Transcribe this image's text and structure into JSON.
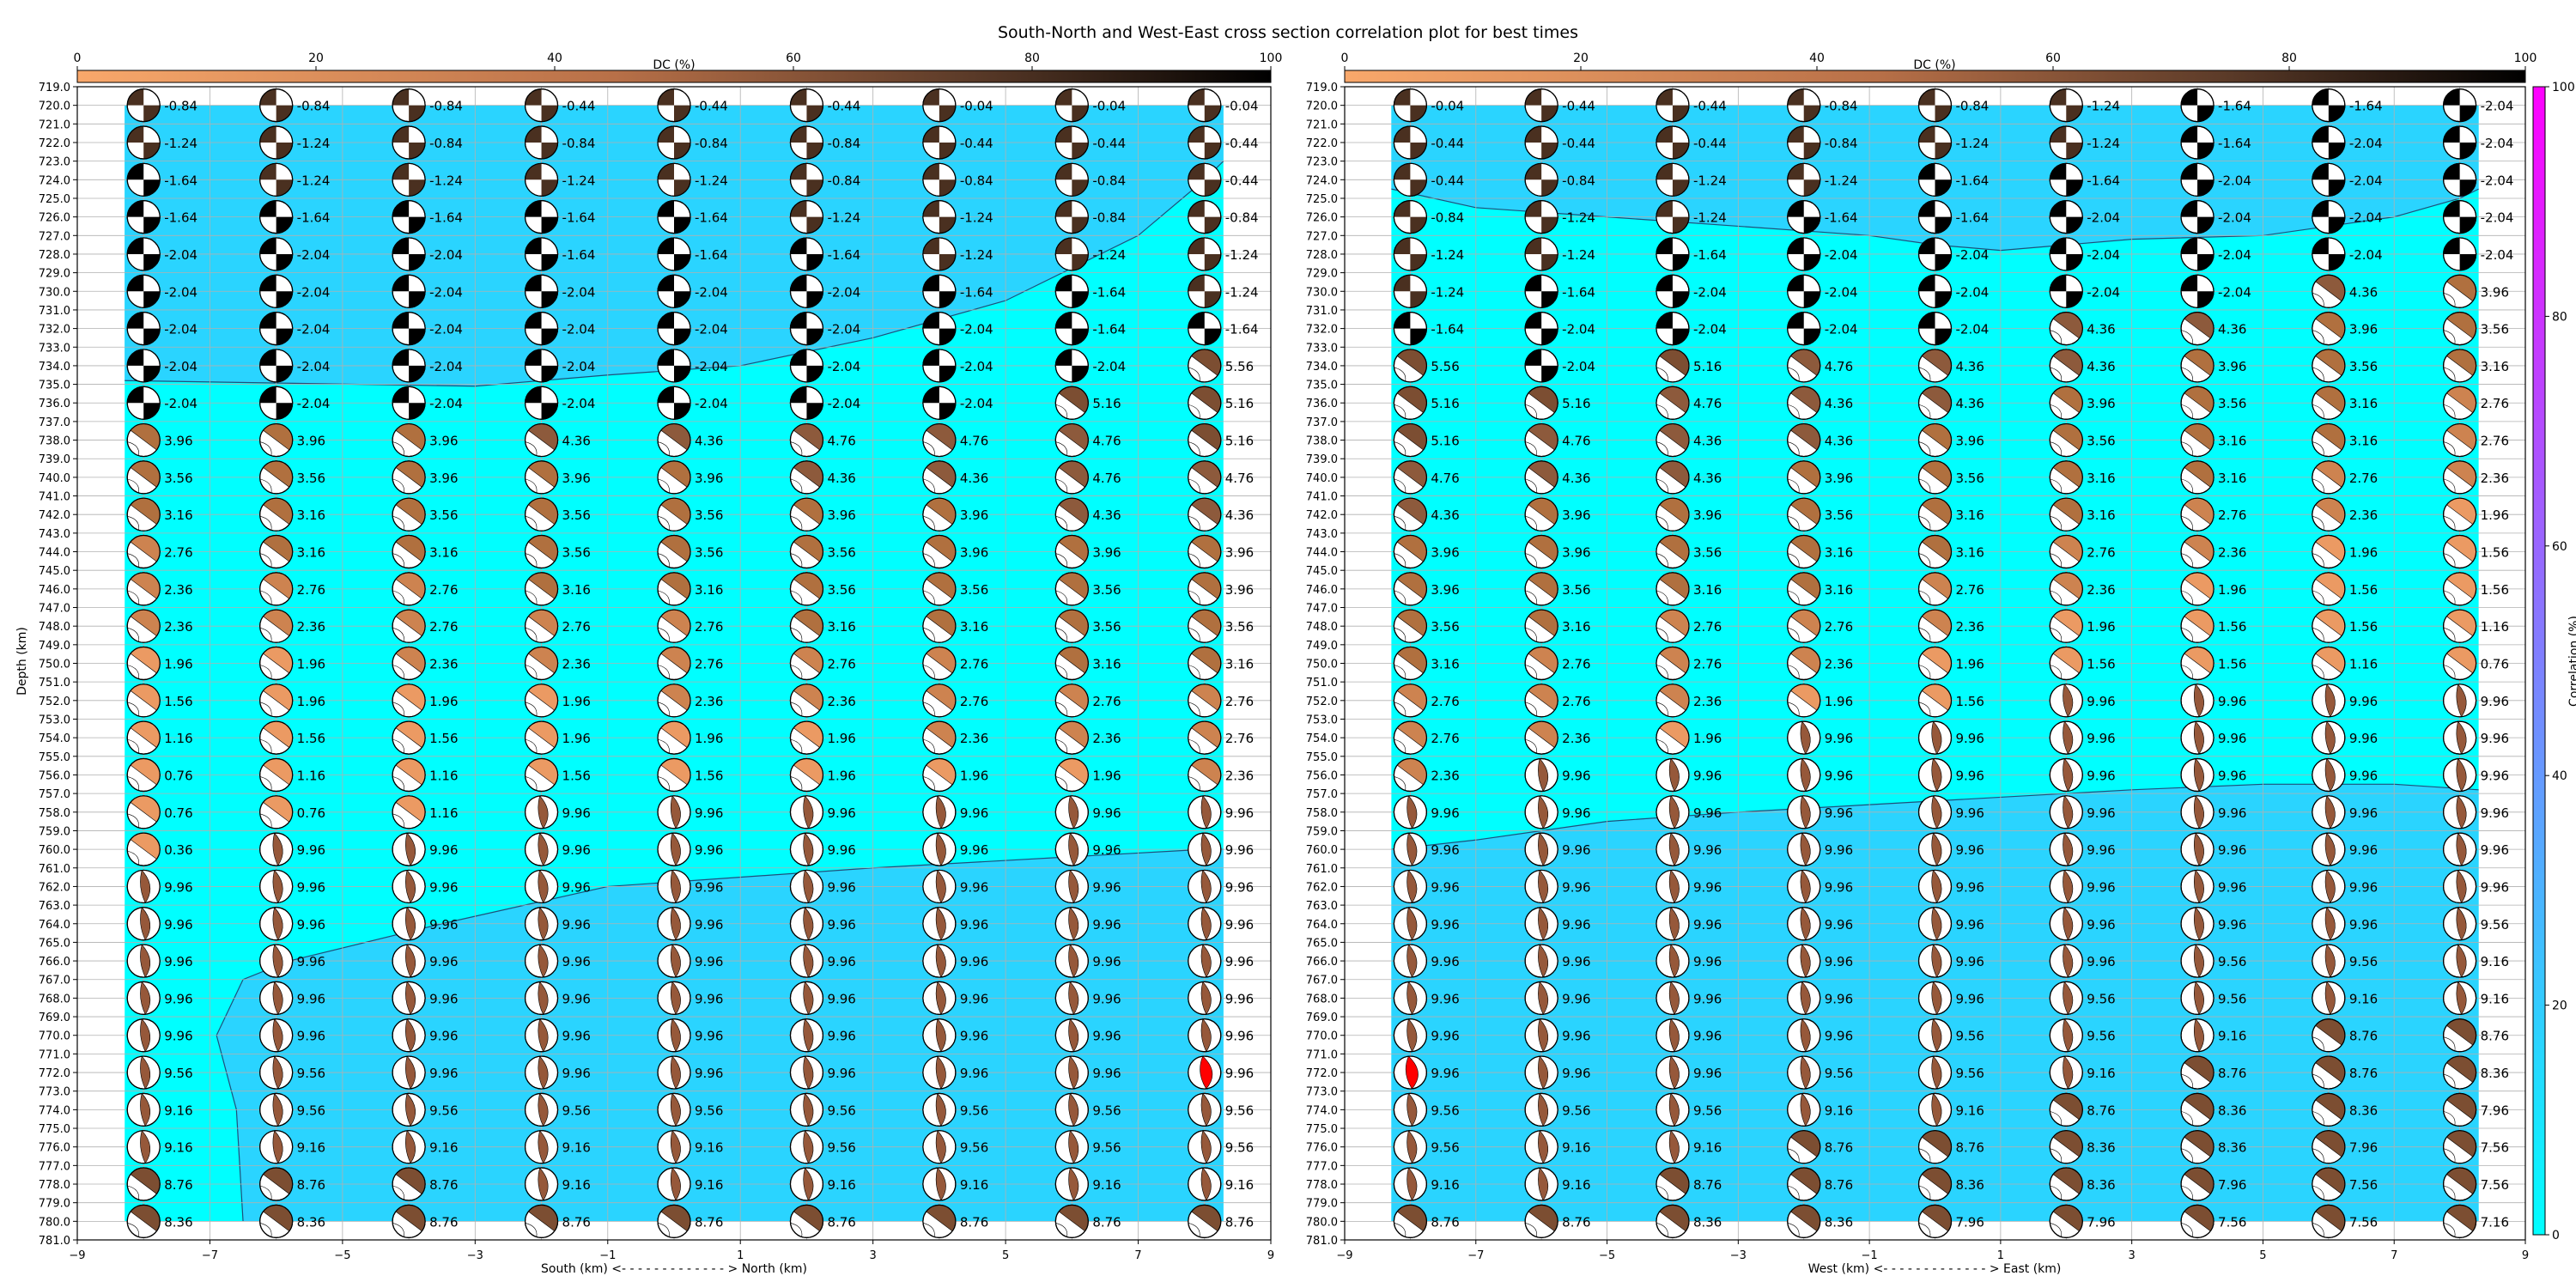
{
  "title": "South-North and West-East cross section correlation plot for best times",
  "dc_colorbar": {
    "label": "DC (%)",
    "range": [
      0,
      100
    ],
    "ticks": [
      0,
      20,
      40,
      60,
      80,
      100
    ]
  },
  "corr_colorbar": {
    "label": "Correlation (%)",
    "range": [
      0,
      100
    ],
    "ticks": [
      0,
      20,
      40,
      60,
      80,
      100
    ]
  },
  "chart_data": [
    {
      "type": "heatmap",
      "xlabel": "South (km) <- - - - - - - - - - - - - > North (km)",
      "ylabel": "Depth (km)",
      "xlim": [
        -9,
        9
      ],
      "ylim": [
        781,
        719
      ],
      "x_ticks": [
        "−9",
        "−7",
        "−5",
        "−3",
        "−1",
        "1",
        "3",
        "5",
        "7",
        "9"
      ],
      "x": [
        -8,
        -6,
        -4,
        -2,
        0,
        2,
        4,
        6,
        8
      ],
      "depths": [
        720,
        722,
        724,
        726,
        728,
        730,
        732,
        734,
        736,
        738,
        740,
        742,
        744,
        746,
        748,
        750,
        752,
        754,
        756,
        758,
        760,
        762,
        764,
        766,
        768,
        770,
        772,
        774,
        776,
        778,
        780
      ],
      "best_cell": {
        "x": 8,
        "depth": 772
      },
      "contour": {
        "upper": [
          [
            -9,
            734.8
          ],
          [
            -3,
            735.1
          ],
          [
            -1,
            734.5
          ],
          [
            1,
            734
          ],
          [
            3,
            732.5
          ],
          [
            5,
            730.5
          ],
          [
            7,
            727
          ],
          [
            8,
            724
          ],
          [
            9,
            723
          ]
        ],
        "lower": [
          [
            -6.5,
            780
          ],
          [
            -6.6,
            774
          ],
          [
            -6.9,
            770
          ],
          [
            -6.5,
            767
          ],
          [
            -5.8,
            766
          ],
          [
            -3.5,
            764
          ],
          [
            -1,
            762
          ],
          [
            3,
            761
          ],
          [
            6,
            760.4
          ],
          [
            8,
            760
          ],
          [
            9,
            760
          ]
        ]
      },
      "times": [
        [
          "-0.84",
          "-0.84",
          "-0.84",
          "-0.44",
          "-0.44",
          "-0.44",
          "-0.04",
          "-0.04",
          "-0.04"
        ],
        [
          "-1.24",
          "-1.24",
          "-0.84",
          "-0.84",
          "-0.84",
          "-0.84",
          "-0.44",
          "-0.44",
          "-0.44"
        ],
        [
          "-1.64",
          "-1.24",
          "-1.24",
          "-1.24",
          "-1.24",
          "-0.84",
          "-0.84",
          "-0.84",
          "-0.44"
        ],
        [
          "-1.64",
          "-1.64",
          "-1.64",
          "-1.64",
          "-1.64",
          "-1.24",
          "-1.24",
          "-0.84",
          "-0.84"
        ],
        [
          "-2.04",
          "-2.04",
          "-2.04",
          "-1.64",
          "-1.64",
          "-1.64",
          "-1.24",
          "-1.24",
          "-1.24"
        ],
        [
          "-2.04",
          "-2.04",
          "-2.04",
          "-2.04",
          "-2.04",
          "-2.04",
          "-1.64",
          "-1.64",
          "-1.24"
        ],
        [
          "-2.04",
          "-2.04",
          "-2.04",
          "-2.04",
          "-2.04",
          "-2.04",
          "-2.04",
          "-1.64",
          "-1.64"
        ],
        [
          "-2.04",
          "-2.04",
          "-2.04",
          "-2.04",
          "-2.04",
          "-2.04",
          "-2.04",
          "-2.04",
          "5.56"
        ],
        [
          "-2.04",
          "-2.04",
          "-2.04",
          "-2.04",
          "-2.04",
          "-2.04",
          "-2.04",
          "5.16",
          "5.16"
        ],
        [
          "3.96",
          "3.96",
          "3.96",
          "4.36",
          "4.36",
          "4.76",
          "4.76",
          "4.76",
          "5.16"
        ],
        [
          "3.56",
          "3.56",
          "3.96",
          "3.96",
          "3.96",
          "4.36",
          "4.36",
          "4.76",
          "4.76"
        ],
        [
          "3.16",
          "3.16",
          "3.56",
          "3.56",
          "3.56",
          "3.96",
          "3.96",
          "4.36",
          "4.36"
        ],
        [
          "2.76",
          "3.16",
          "3.16",
          "3.56",
          "3.56",
          "3.56",
          "3.96",
          "3.96",
          "3.96"
        ],
        [
          "2.36",
          "2.76",
          "2.76",
          "3.16",
          "3.16",
          "3.56",
          "3.56",
          "3.56",
          "3.96"
        ],
        [
          "2.36",
          "2.36",
          "2.76",
          "2.76",
          "2.76",
          "3.16",
          "3.16",
          "3.56",
          "3.56"
        ],
        [
          "1.96",
          "1.96",
          "2.36",
          "2.36",
          "2.76",
          "2.76",
          "2.76",
          "3.16",
          "3.16"
        ],
        [
          "1.56",
          "1.96",
          "1.96",
          "1.96",
          "2.36",
          "2.36",
          "2.76",
          "2.76",
          "2.76"
        ],
        [
          "1.16",
          "1.56",
          "1.56",
          "1.96",
          "1.96",
          "1.96",
          "2.36",
          "2.36",
          "2.76"
        ],
        [
          "0.76",
          "1.16",
          "1.16",
          "1.56",
          "1.56",
          "1.96",
          "1.96",
          "1.96",
          "2.36"
        ],
        [
          "0.76",
          "0.76",
          "1.16",
          "9.96",
          "9.96",
          "9.96",
          "9.96",
          "9.96",
          "9.96"
        ],
        [
          "0.36",
          "9.96",
          "9.96",
          "9.96",
          "9.96",
          "9.96",
          "9.96",
          "9.96",
          "9.96"
        ],
        [
          "9.96",
          "9.96",
          "9.96",
          "9.96",
          "9.96",
          "9.96",
          "9.96",
          "9.96",
          "9.96"
        ],
        [
          "9.96",
          "9.96",
          "9.96",
          "9.96",
          "9.96",
          "9.96",
          "9.96",
          "9.96",
          "9.96"
        ],
        [
          "9.96",
          "9.96",
          "9.96",
          "9.96",
          "9.96",
          "9.96",
          "9.96",
          "9.96",
          "9.96"
        ],
        [
          "9.96",
          "9.96",
          "9.96",
          "9.96",
          "9.96",
          "9.96",
          "9.96",
          "9.96",
          "9.96"
        ],
        [
          "9.96",
          "9.96",
          "9.96",
          "9.96",
          "9.96",
          "9.96",
          "9.96",
          "9.96",
          "9.96"
        ],
        [
          "9.56",
          "9.56",
          "9.96",
          "9.96",
          "9.96",
          "9.96",
          "9.96",
          "9.96",
          "9.96"
        ],
        [
          "9.16",
          "9.56",
          "9.56",
          "9.56",
          "9.56",
          "9.56",
          "9.56",
          "9.56",
          "9.56"
        ],
        [
          "9.16",
          "9.16",
          "9.16",
          "9.16",
          "9.16",
          "9.56",
          "9.56",
          "9.56",
          "9.56"
        ],
        [
          "8.76",
          "8.76",
          "8.76",
          "9.16",
          "9.16",
          "9.16",
          "9.16",
          "9.16",
          "9.16"
        ],
        [
          "8.36",
          "8.36",
          "8.76",
          "8.76",
          "8.76",
          "8.76",
          "8.76",
          "8.76",
          "8.76"
        ]
      ]
    },
    {
      "type": "heatmap",
      "xlabel": "West (km) <- - - - - - - - - - - - - > East (km)",
      "ylabel": "",
      "xlim": [
        -9,
        9
      ],
      "ylim": [
        781,
        719
      ],
      "x_ticks": [
        "−9",
        "−7",
        "−5",
        "−3",
        "−1",
        "1",
        "3",
        "5",
        "7",
        "9"
      ],
      "x": [
        -8,
        -6,
        -4,
        -2,
        0,
        2,
        4,
        6,
        8
      ],
      "depths": [
        720,
        722,
        724,
        726,
        728,
        730,
        732,
        734,
        736,
        738,
        740,
        742,
        744,
        746,
        748,
        750,
        752,
        754,
        756,
        758,
        760,
        762,
        764,
        766,
        768,
        770,
        772,
        774,
        776,
        778,
        780
      ],
      "best_cell": {
        "x": -8,
        "depth": 772
      },
      "contour": {
        "upper": [
          [
            -9,
            724.5
          ],
          [
            -7,
            725.5
          ],
          [
            -5,
            726
          ],
          [
            -3,
            726.5
          ],
          [
            -1,
            727
          ],
          [
            0,
            727.5
          ],
          [
            1,
            727.8
          ],
          [
            3,
            727.2
          ],
          [
            5,
            727
          ],
          [
            7,
            726
          ],
          [
            8,
            725
          ],
          [
            9,
            724.5
          ]
        ],
        "lower": [
          [
            -9,
            760
          ],
          [
            -7,
            759.5
          ],
          [
            -5,
            758.5
          ],
          [
            -3,
            758
          ],
          [
            -1,
            757.6
          ],
          [
            1,
            757.2
          ],
          [
            3,
            756.8
          ],
          [
            5,
            756.5
          ],
          [
            7,
            756.5
          ],
          [
            9,
            756.8
          ]
        ]
      },
      "times": [
        [
          "-0.04",
          "-0.44",
          "-0.44",
          "-0.84",
          "-0.84",
          "-1.24",
          "-1.64",
          "-1.64",
          "-2.04"
        ],
        [
          "-0.44",
          "-0.44",
          "-0.44",
          "-0.84",
          "-1.24",
          "-1.24",
          "-1.64",
          "-2.04",
          "-2.04"
        ],
        [
          "-0.44",
          "-0.84",
          "-1.24",
          "-1.24",
          "-1.64",
          "-1.64",
          "-2.04",
          "-2.04",
          "-2.04"
        ],
        [
          "-0.84",
          "-1.24",
          "-1.24",
          "-1.64",
          "-1.64",
          "-2.04",
          "-2.04",
          "-2.04",
          "-2.04"
        ],
        [
          "-1.24",
          "-1.24",
          "-1.64",
          "-2.04",
          "-2.04",
          "-2.04",
          "-2.04",
          "-2.04",
          "-2.04"
        ],
        [
          "-1.24",
          "-1.64",
          "-2.04",
          "-2.04",
          "-2.04",
          "-2.04",
          "-2.04",
          "4.36",
          "3.96"
        ],
        [
          "-1.64",
          "-2.04",
          "-2.04",
          "-2.04",
          "-2.04",
          "4.36",
          "4.36",
          "3.96",
          "3.56"
        ],
        [
          "5.56",
          "-2.04",
          "5.16",
          "4.76",
          "4.36",
          "4.36",
          "3.96",
          "3.56",
          "3.16"
        ],
        [
          "5.16",
          "5.16",
          "4.76",
          "4.36",
          "4.36",
          "3.96",
          "3.56",
          "3.16",
          "2.76"
        ],
        [
          "5.16",
          "4.76",
          "4.36",
          "4.36",
          "3.96",
          "3.56",
          "3.16",
          "3.16",
          "2.76"
        ],
        [
          "4.76",
          "4.36",
          "4.36",
          "3.96",
          "3.56",
          "3.16",
          "3.16",
          "2.76",
          "2.36"
        ],
        [
          "4.36",
          "3.96",
          "3.96",
          "3.56",
          "3.16",
          "3.16",
          "2.76",
          "2.36",
          "1.96"
        ],
        [
          "3.96",
          "3.96",
          "3.56",
          "3.16",
          "3.16",
          "2.76",
          "2.36",
          "1.96",
          "1.56"
        ],
        [
          "3.96",
          "3.56",
          "3.16",
          "3.16",
          "2.76",
          "2.36",
          "1.96",
          "1.56",
          "1.56"
        ],
        [
          "3.56",
          "3.16",
          "2.76",
          "2.76",
          "2.36",
          "1.96",
          "1.56",
          "1.56",
          "1.16"
        ],
        [
          "3.16",
          "2.76",
          "2.76",
          "2.36",
          "1.96",
          "1.56",
          "1.56",
          "1.16",
          "0.76"
        ],
        [
          "2.76",
          "2.76",
          "2.36",
          "1.96",
          "1.56",
          "9.96",
          "9.96",
          "9.96",
          "9.96"
        ],
        [
          "2.76",
          "2.36",
          "1.96",
          "9.96",
          "9.96",
          "9.96",
          "9.96",
          "9.96",
          "9.96"
        ],
        [
          "2.36",
          "9.96",
          "9.96",
          "9.96",
          "9.96",
          "9.96",
          "9.96",
          "9.96",
          "9.96"
        ],
        [
          "9.96",
          "9.96",
          "9.96",
          "9.96",
          "9.96",
          "9.96",
          "9.96",
          "9.96",
          "9.96"
        ],
        [
          "9.96",
          "9.96",
          "9.96",
          "9.96",
          "9.96",
          "9.96",
          "9.96",
          "9.96",
          "9.96"
        ],
        [
          "9.96",
          "9.96",
          "9.96",
          "9.96",
          "9.96",
          "9.96",
          "9.96",
          "9.96",
          "9.96"
        ],
        [
          "9.96",
          "9.96",
          "9.96",
          "9.96",
          "9.96",
          "9.96",
          "9.96",
          "9.96",
          "9.56"
        ],
        [
          "9.96",
          "9.96",
          "9.96",
          "9.96",
          "9.96",
          "9.96",
          "9.56",
          "9.56",
          "9.16"
        ],
        [
          "9.96",
          "9.96",
          "9.96",
          "9.96",
          "9.96",
          "9.56",
          "9.56",
          "9.16",
          "9.16"
        ],
        [
          "9.96",
          "9.96",
          "9.96",
          "9.96",
          "9.56",
          "9.56",
          "9.16",
          "8.76",
          "8.76"
        ],
        [
          "9.96",
          "9.96",
          "9.96",
          "9.56",
          "9.56",
          "9.16",
          "8.76",
          "8.76",
          "8.36"
        ],
        [
          "9.56",
          "9.56",
          "9.56",
          "9.16",
          "9.16",
          "8.76",
          "8.36",
          "8.36",
          "7.96"
        ],
        [
          "9.56",
          "9.16",
          "9.16",
          "8.76",
          "8.76",
          "8.36",
          "8.36",
          "7.96",
          "7.56"
        ],
        [
          "9.16",
          "9.16",
          "8.76",
          "8.76",
          "8.36",
          "8.36",
          "7.96",
          "7.56",
          "7.56"
        ],
        [
          "8.76",
          "8.76",
          "8.36",
          "8.36",
          "7.96",
          "7.96",
          "7.56",
          "7.56",
          "7.16"
        ]
      ]
    }
  ],
  "colors": {
    "band_low": "#00ffff",
    "band_high": "#2ad4ff",
    "contour": "#1f4f7a",
    "beachball_best": "#ff0000",
    "dc_low": "#f9a86b",
    "dc_high": "#000000",
    "corr_low": "#00ffff",
    "corr_high": "#ff00ff"
  }
}
